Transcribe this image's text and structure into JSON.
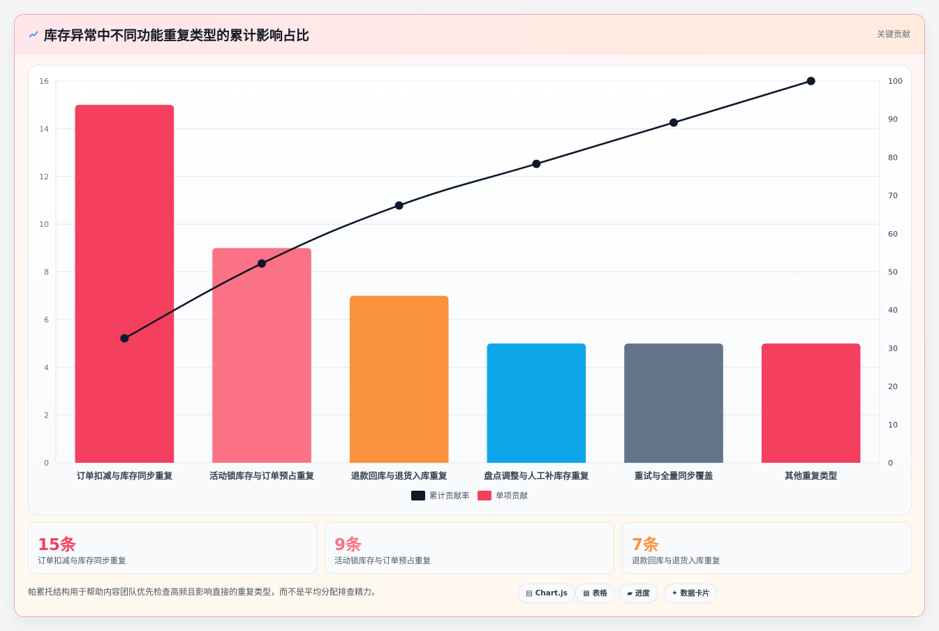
{
  "header": {
    "title": "库存异常中不同功能重复类型的累计影响占比",
    "tag": "关键贡献"
  },
  "colors": {
    "line": "#0f172a",
    "bars": [
      "#f43f5e",
      "#fb7185",
      "#fb923c",
      "#0ea5e9",
      "#64748b",
      "#f43f5e"
    ]
  },
  "chart_data": {
    "type": "bar",
    "categories": [
      "订单扣减与库存同步重复",
      "活动锁库存与订单预占重复",
      "退款回库与退货入库重复",
      "盘点调整与人工补库存重复",
      "重试与全量同步覆盖",
      "其他重复类型"
    ],
    "series": [
      {
        "name": "单项贡献",
        "type": "bar",
        "axis": "left",
        "values": [
          15,
          9,
          7,
          5,
          5,
          5
        ]
      },
      {
        "name": "累计贡献率",
        "type": "line",
        "axis": "right",
        "values": [
          32.6,
          52.2,
          67.4,
          78.3,
          89.1,
          100
        ]
      }
    ],
    "y_left": {
      "min": 0,
      "max": 16,
      "ticks": [
        0,
        2,
        4,
        6,
        8,
        10,
        12,
        14,
        16
      ]
    },
    "y_right": {
      "min": 0,
      "max": 100,
      "ticks": [
        0,
        10,
        20,
        30,
        40,
        50,
        60,
        70,
        80,
        90,
        100
      ]
    },
    "legend": [
      "累计贡献率",
      "单项贡献"
    ],
    "legend_position": "bottom",
    "grid": true
  },
  "stats": [
    {
      "value": "15条",
      "label": "订单扣减与库存同步重复",
      "color": "#f43f5e"
    },
    {
      "value": "9条",
      "label": "活动锁库存与订单预占重复",
      "color": "#fb7185"
    },
    {
      "value": "7条",
      "label": "退款回库与退货入库重复",
      "color": "#fb923c"
    }
  ],
  "footnote": "帕累托结构用于帮助内容团队优先检查高频且影响直接的重复类型，而不是平均分配排查精力。",
  "chips": [
    {
      "icon": "chart-icon",
      "label": "Chart.js"
    },
    {
      "icon": "table-icon",
      "label": "表格"
    },
    {
      "icon": "progress-icon",
      "label": "进度"
    },
    {
      "icon": "sparkle-icon",
      "label": "数据卡片"
    }
  ]
}
